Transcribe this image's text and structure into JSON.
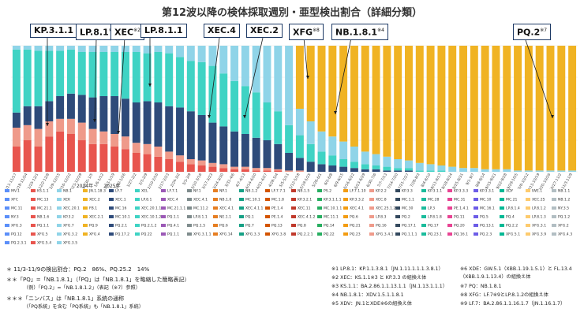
{
  "title": "第12波以降の検体採取週別・亜型検出割合（詳細分類）",
  "year_labels": [
    "2024年",
    "2025年"
  ],
  "chart_data": {
    "type": "bar",
    "stacked": true,
    "title": "第12波以降の検体採取週別・亜型検出割合（詳細分類）",
    "ylim": [
      0,
      100
    ],
    "categories": [
      "11/11-11/17",
      "11/18-11/24",
      "11/25-12/1",
      "12/2-12/8",
      "12/9-12/15",
      "12/16-12/22",
      "12/23-12/29",
      "12/30-1/5",
      "1/6-1/12",
      "1/13-1/19",
      "1/20-1/26",
      "1/27-2/2",
      "2/3-2/9",
      "2/10-2/16",
      "2/17-2/23",
      "2/24-3/2",
      "3/3-3/9",
      "3/10-3/16",
      "3/17-3/23",
      "3/24-3/30",
      "3/31-4/6",
      "4/7-4/13",
      "4/14-4/20",
      "4/21-4/27",
      "4/28-5/4",
      "5/5-5/11",
      "5/12-5/18",
      "5/19-5/25",
      "5/26-6/1",
      "6/2-6/8",
      "6/9-6/15",
      "6/16-6/22",
      "6/23-6/29",
      "6/30-7/6",
      "7/7-7/13",
      "7/14-7/20",
      "7/21-7/27",
      "7/28-8/3",
      "8/4-8/10",
      "8/11-8/17",
      "8/18-8/24",
      "8/25-8/31",
      "9/1-9/7",
      "9/8-9/14",
      "9/15-9/21",
      "9/22-9/28",
      "9/29-10/5",
      "10/6-10/12",
      "10/13-10/19",
      "10/20-10/26",
      "10/27-11/2",
      "11/3-11/9"
    ],
    "series": [
      {
        "name": "KP.3.1.1",
        "color": "#e8554e",
        "values": [
          20,
          25,
          20,
          28,
          32,
          30,
          25,
          22,
          22,
          20,
          18,
          15,
          14,
          12,
          10,
          8,
          6,
          5,
          4,
          3,
          2,
          2,
          1,
          1,
          1,
          0,
          0,
          0,
          0,
          0,
          0,
          0,
          0,
          0,
          0,
          0,
          0,
          0,
          0,
          0,
          0,
          0,
          0,
          0,
          0,
          0,
          0,
          0,
          0,
          0,
          0,
          0
        ]
      },
      {
        "name": "LP.8.1",
        "color": "#ef9a8a",
        "values": [
          15,
          12,
          14,
          12,
          10,
          12,
          14,
          12,
          10,
          10,
          10,
          8,
          8,
          8,
          6,
          5,
          4,
          4,
          3,
          3,
          2,
          2,
          2,
          2,
          1,
          1,
          1,
          0,
          0,
          0,
          0,
          0,
          0,
          0,
          0,
          0,
          0,
          0,
          0,
          0,
          0,
          0,
          0,
          0,
          0,
          0,
          0,
          0,
          0,
          0,
          0,
          0
        ]
      },
      {
        "name": "XEC",
        "color": "#2e4b7a",
        "values": [
          12,
          15,
          18,
          16,
          18,
          20,
          22,
          25,
          28,
          30,
          30,
          32,
          34,
          35,
          36,
          38,
          38,
          36,
          32,
          30,
          28,
          26,
          24,
          22,
          20,
          14,
          10,
          8,
          6,
          5,
          4,
          3,
          2,
          2,
          1,
          1,
          1,
          0,
          0,
          0,
          0,
          0,
          0,
          0,
          0,
          0,
          0,
          0,
          0,
          0,
          0,
          0
        ]
      },
      {
        "name": "LP.8.1.1",
        "color": "#3fd3c4",
        "values": [
          50,
          45,
          44,
          40,
          36,
          35,
          34,
          36,
          35,
          35,
          37,
          40,
          38,
          40,
          42,
          40,
          40,
          42,
          45,
          42,
          40,
          38,
          36,
          30,
          26,
          22,
          18,
          14,
          10,
          8,
          6,
          5,
          4,
          3,
          3,
          2,
          2,
          1,
          1,
          1,
          0,
          0,
          0,
          0,
          0,
          0,
          0,
          0,
          0,
          0,
          0,
          0
        ]
      },
      {
        "name": "XEC.4",
        "color": "#8fd4e8",
        "values": [
          3,
          3,
          4,
          4,
          4,
          3,
          5,
          5,
          5,
          5,
          5,
          5,
          6,
          5,
          6,
          9,
          12,
          13,
          16,
          22,
          28,
          32,
          37,
          45,
          52,
          63,
          21,
          18,
          16,
          15,
          14,
          12,
          10,
          9,
          8,
          7,
          6,
          6,
          5,
          4,
          4,
          3,
          3,
          2,
          2,
          2,
          1,
          1,
          1,
          1,
          1,
          1
        ]
      },
      {
        "name": "XFG",
        "color": "#f0b323",
        "values": [
          0,
          0,
          0,
          0,
          0,
          0,
          0,
          0,
          0,
          0,
          0,
          0,
          0,
          0,
          0,
          0,
          0,
          0,
          0,
          0,
          0,
          0,
          0,
          0,
          0,
          0,
          50,
          60,
          68,
          72,
          76,
          80,
          84,
          86,
          88,
          90,
          91,
          93,
          94,
          95,
          96,
          97,
          97,
          98,
          98,
          98,
          99,
          99,
          99,
          99,
          99,
          99
        ]
      }
    ],
    "xlabel": "",
    "ylabel": ""
  },
  "callouts": [
    {
      "label": "KP.3.1.1",
      "sup": ""
    },
    {
      "label": "LP.8.1",
      "sup": "※1"
    },
    {
      "label": "XEC",
      "sup": "※2"
    },
    {
      "label": "LP.8.1.1",
      "sup": ""
    },
    {
      "label": "XEC.4",
      "sup": ""
    },
    {
      "label": "XEC.2",
      "sup": ""
    },
    {
      "label": "XFG",
      "sup": "※8"
    },
    {
      "label": "NB.1.8.1",
      "sup": "※4"
    },
    {
      "label": "PQ.2",
      "sup": "※7"
    }
  ],
  "legend": [
    "MV.1",
    "KS.1.1",
    "NB.1",
    "JN.1.18.3",
    "LF.7",
    "XEL",
    "LF.7.1",
    "NY.1",
    "NP.1",
    "NB.1.2",
    "LF.7.7.1",
    "NB.1.5",
    "PS.2",
    "LF.7.1.10",
    "KP.2.2",
    "KP.3.3",
    "KP.3.1.1",
    "KP.3.3.3",
    "KP.3.3.1",
    "XDY",
    "IWE.1",
    "NB.1.1",
    "XFC",
    "MC.13",
    "XEK",
    "XEC.2",
    "XEC.1",
    "LP.8.1",
    "XEC.4",
    "XEC.4.1",
    "NB.1.8",
    "MC.10.1",
    "MC.1.8",
    "KP.3.2.1",
    "KP.3.1.1.1",
    "KP.3.3.2",
    "XEC.8",
    "MC.1.1",
    "MC.28",
    "MC.31",
    "MC.10",
    "MC.21",
    "XEC.25",
    "NB.1.2",
    "MC.11",
    "MC.21.1",
    "XEC.20.1",
    "FB.1",
    "MC.16",
    "XEC.20.1.1",
    "MC.21.1.1",
    "MC.11.2",
    "XEC.4.1",
    "XEC.4.1.1",
    "PE.1.4",
    "XEC.11",
    "MC.10.1.1",
    "XEC.4.1",
    "XEC.25.1.2",
    "MC.30",
    "LP.3",
    "PE.1.4.1",
    "MC.16.1",
    "LP.8.1.4",
    "LP.8.1.2",
    "NY.3.5",
    "NY.3",
    "NB.1.6",
    "KP.3.2",
    "XEC.2.1",
    "MC.10.1",
    "XEC.10.1.2",
    "PQ.1.1",
    "LP.8.1.1",
    "NE.1.1",
    "PQ.1",
    "PE.1.4",
    "XEC.4.1.2",
    "MC.11.1",
    "PQ.6",
    "LP.8.3",
    "PQ.2",
    "LP.8.1.8",
    "PQ.11",
    "PQ.5",
    "PQ.4",
    "LP.8.1.3",
    "PQ.1.2",
    "XFG.3",
    "PQ.1.1",
    "XFG.7",
    "PQ.9",
    "PQ.2.1",
    "PQ.2.1.2",
    "PQ.4.1",
    "PQ.1.5",
    "PQ.6",
    "PQ.7",
    "PQ.13",
    "PQ.8",
    "PQ.14",
    "PQ.21",
    "PQ.16",
    "PQ.17.1",
    "PQ.17",
    "PQ.20",
    "PQ.13.1",
    "PQ.2.2",
    "XFG.3.1",
    "XFG.2",
    "PQ.12",
    "XFG.5",
    "XFG.3.2",
    "XFG.4",
    "PQ.17.2",
    "PQ.22",
    "PQ.1.1",
    "XFG.3.1.1",
    "XFG.14",
    "XFG.3.3",
    "XFG.3.8",
    "PQ.2.2.1",
    "PQ.22",
    "PQ.23",
    "XFG.3.4.1",
    "PQ.1.1.1",
    "PQ.23.1",
    "PQ.16.1",
    "PQ.2.3",
    "XFG.5.1",
    "XFG.3.9",
    "XFG.4.3",
    "PQ.2.3.1",
    "XFG.5.4",
    "XFG.3.5"
  ],
  "notes": {
    "n1": "＊ 11/3-11/9の検出割合：PQ.2　86%、PQ.25.2　14%",
    "n2": "＊＊「PQ」=「NB.1.8.1」（「PQ」は「NB.1.8.1」を略縮した簡略表記）",
    "n2b": "（例）「PQ.2」=「NB.1.8.1.2」（表記（※7）参照）",
    "n3": "＊＊＊「ニンバス」は「NB.1.8.1」系統の通称",
    "n3b": "（「PQ系統」を含む「PQ系統」も「NB.1.8.1」系統）",
    "f1": "※1 LP.8.1：KP.1.1.3.8.1（JN.1.11.1.1.1.3.8.1）",
    "f2": "※2 XEC：KS.1.1※3 と KP.3.3 の組換え体",
    "f3": "※3 KS.1.1：BA.2.86.1.1.13.1.1（JN.1.13.1.1.1）",
    "f4": "※4 NB.1.8.1：XDV.1.5.1.1.8.1",
    "f5": "※5 XDV：JN.1とXDE※6の組換え体",
    "f6": "※6 XDE：GW.5.1（XBB.1.19.1.5.1）と FL.13.4（XBB.1.9.1.13.4）の組換え体",
    "f7": "※7 PQ：NB.1.8.1",
    "f8": "※8 XFG：LF.7※9とLP.8.1.2の組換え体",
    "f9": "※9 LF.7：BA.2.86.1.1.16.1.7（JN.1.16.1.7）"
  }
}
